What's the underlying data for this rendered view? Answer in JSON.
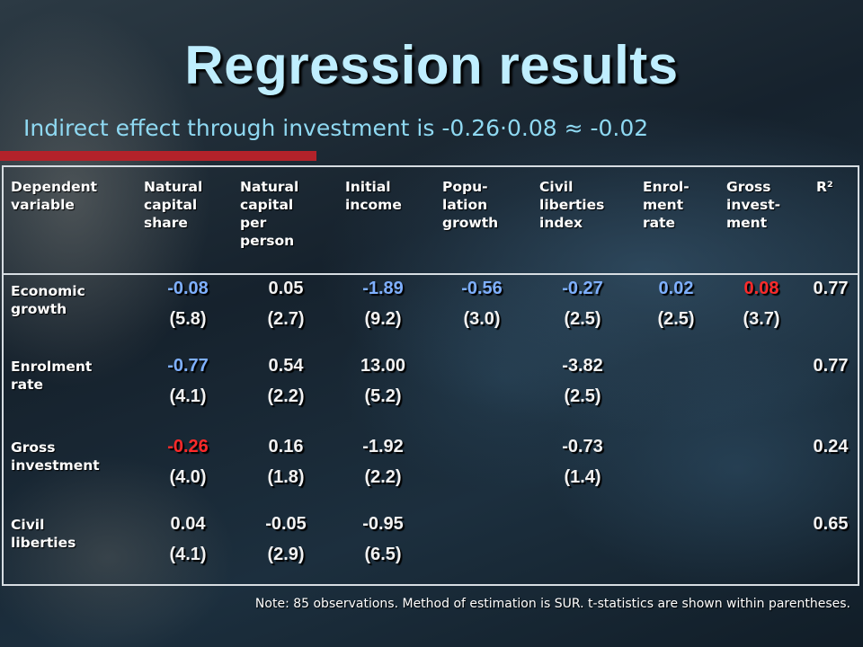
{
  "title": "Regression results",
  "subtitle": "Indirect effect through investment is -0.26·0.08 ≈ -0.02",
  "header": {
    "dependent": "Dependent\nvariable",
    "columns": [
      "Natural\ncapital\nshare",
      "Natural\ncapital\nper\nperson",
      "Initial\nincome",
      "Popu-\nlation\ngrowth",
      "Civil\nliberties\nindex",
      "Enrol-\nment\nrate",
      "Gross\ninvest-\nment",
      "R²"
    ]
  },
  "rows": [
    {
      "label": "Economic\ngrowth",
      "coef": [
        "-0.08",
        "0.05",
        "-1.89",
        "-0.56",
        "-0.27",
        "0.02",
        "0.08",
        "0.77"
      ],
      "tstat": [
        "(5.8)",
        "(2.7)",
        "(9.2)",
        "(3.0)",
        "(2.5)",
        "(2.5)",
        "(3.7)",
        ""
      ],
      "coef_colors": [
        "blue",
        "",
        "blue",
        "blue",
        "blue",
        "blue",
        "red",
        ""
      ],
      "tstat_colors": [
        "",
        "",
        "",
        "",
        "",
        "",
        "",
        ""
      ]
    },
    {
      "label": "Enrolment\nrate",
      "coef": [
        "-0.77",
        "0.54",
        "13.00",
        "",
        "-3.82",
        "",
        "",
        "0.77"
      ],
      "tstat": [
        "(4.1)",
        "(2.2)",
        "(5.2)",
        "",
        "(2.5)",
        "",
        "",
        ""
      ],
      "coef_colors": [
        "blue",
        "",
        "",
        "",
        "",
        "",
        "",
        ""
      ],
      "tstat_colors": [
        "",
        "",
        "",
        "",
        "",
        "",
        "",
        ""
      ]
    },
    {
      "label": "Gross\ninvestment",
      "coef": [
        "-0.26",
        "0.16",
        "-1.92",
        "",
        "-0.73",
        "",
        "",
        "0.24"
      ],
      "tstat": [
        "(4.0)",
        "(1.8)",
        "(2.2)",
        "",
        "(1.4)",
        "",
        "",
        ""
      ],
      "coef_colors": [
        "red",
        "",
        "",
        "",
        "",
        "",
        "",
        ""
      ],
      "tstat_colors": [
        "",
        "",
        "",
        "",
        "",
        "",
        "",
        ""
      ]
    },
    {
      "label": "Civil\nliberties",
      "coef": [
        "0.04",
        "-0.05",
        "-0.95",
        "",
        "",
        "",
        "",
        "0.65"
      ],
      "tstat": [
        "(4.1)",
        "(2.9)",
        "(6.5)",
        "",
        "",
        "",
        "",
        ""
      ],
      "coef_colors": [
        "",
        "",
        "",
        "",
        "",
        "",
        "",
        ""
      ],
      "tstat_colors": [
        "",
        "",
        "",
        "",
        "",
        "",
        "",
        ""
      ]
    }
  ],
  "note": "Note: 85 observations. Method of estimation is SUR. t-statistics are shown within parentheses.",
  "colors": {
    "title": "#bfeeff",
    "subtitle": "#8fd9f2",
    "accent_bar": "#b3222a",
    "highlight_blue": "#7fb0ff",
    "highlight_red": "#ff2a2a",
    "text": "#ffffff"
  }
}
